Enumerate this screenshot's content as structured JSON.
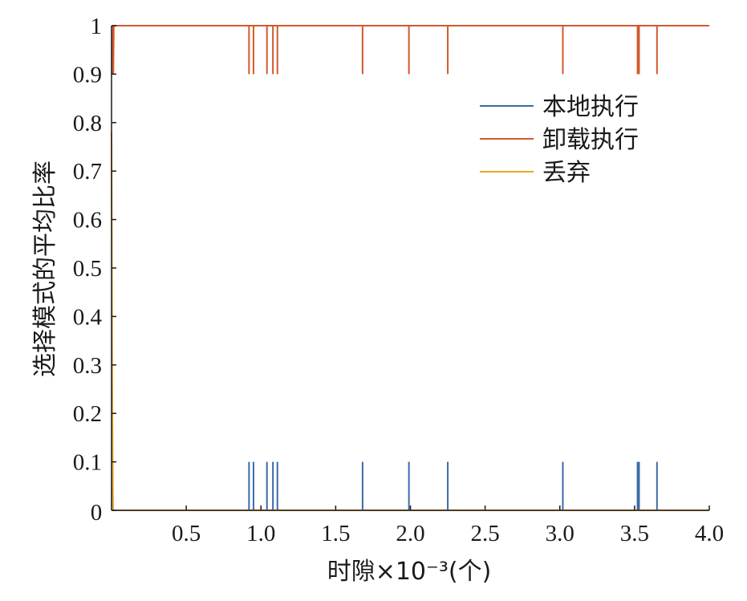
{
  "chart_data": {
    "type": "line",
    "xlabel": "时隙×10⁻³(个)",
    "ylabel": "选择模式的平均比率",
    "xlim": [
      0,
      4.0
    ],
    "ylim": [
      0,
      1
    ],
    "x_ticks": [
      "0.5",
      "1.0",
      "1.5",
      "2.0",
      "2.5",
      "3.0",
      "3.5",
      "4.0"
    ],
    "x_tick_values": [
      0.5,
      1.0,
      1.5,
      2.0,
      2.5,
      3.0,
      3.5,
      4.0
    ],
    "y_ticks": [
      "0",
      "0.1",
      "0.2",
      "0.3",
      "0.4",
      "0.5",
      "0.6",
      "0.7",
      "0.8",
      "0.9",
      "1"
    ],
    "y_tick_values": [
      0,
      0.1,
      0.2,
      0.3,
      0.4,
      0.5,
      0.6,
      0.7,
      0.8,
      0.9,
      1.0
    ],
    "origin_label": "0",
    "grid": false,
    "legend_position": "top-right",
    "series": [
      {
        "name": "本地执行",
        "color": "#3b6aa8",
        "baseline": 0,
        "spikes": [
          {
            "x": 0.92,
            "y": 0.1
          },
          {
            "x": 0.95,
            "y": 0.1
          },
          {
            "x": 1.04,
            "y": 0.1
          },
          {
            "x": 1.08,
            "y": 0.1
          },
          {
            "x": 1.11,
            "y": 0.1
          },
          {
            "x": 1.68,
            "y": 0.1
          },
          {
            "x": 1.99,
            "y": 0.1
          },
          {
            "x": 2.25,
            "y": 0.1
          },
          {
            "x": 3.02,
            "y": 0.1
          },
          {
            "x": 3.52,
            "y": 0.1
          },
          {
            "x": 3.53,
            "y": 0.1
          },
          {
            "x": 3.65,
            "y": 0.1
          }
        ]
      },
      {
        "name": "卸载执行",
        "color": "#d25a2b",
        "baseline": 1,
        "spikes": [
          {
            "x": 0.92,
            "y": 0.9
          },
          {
            "x": 0.95,
            "y": 0.9
          },
          {
            "x": 1.04,
            "y": 0.9
          },
          {
            "x": 1.08,
            "y": 0.9
          },
          {
            "x": 1.11,
            "y": 0.9
          },
          {
            "x": 1.68,
            "y": 0.9
          },
          {
            "x": 1.99,
            "y": 0.9
          },
          {
            "x": 2.25,
            "y": 0.9
          },
          {
            "x": 3.02,
            "y": 0.9
          },
          {
            "x": 3.52,
            "y": 0.9
          },
          {
            "x": 3.53,
            "y": 0.9
          },
          {
            "x": 3.65,
            "y": 0.9
          }
        ]
      },
      {
        "name": "丢弃",
        "color": "#eaa52a",
        "baseline": 0,
        "spikes": []
      }
    ]
  }
}
